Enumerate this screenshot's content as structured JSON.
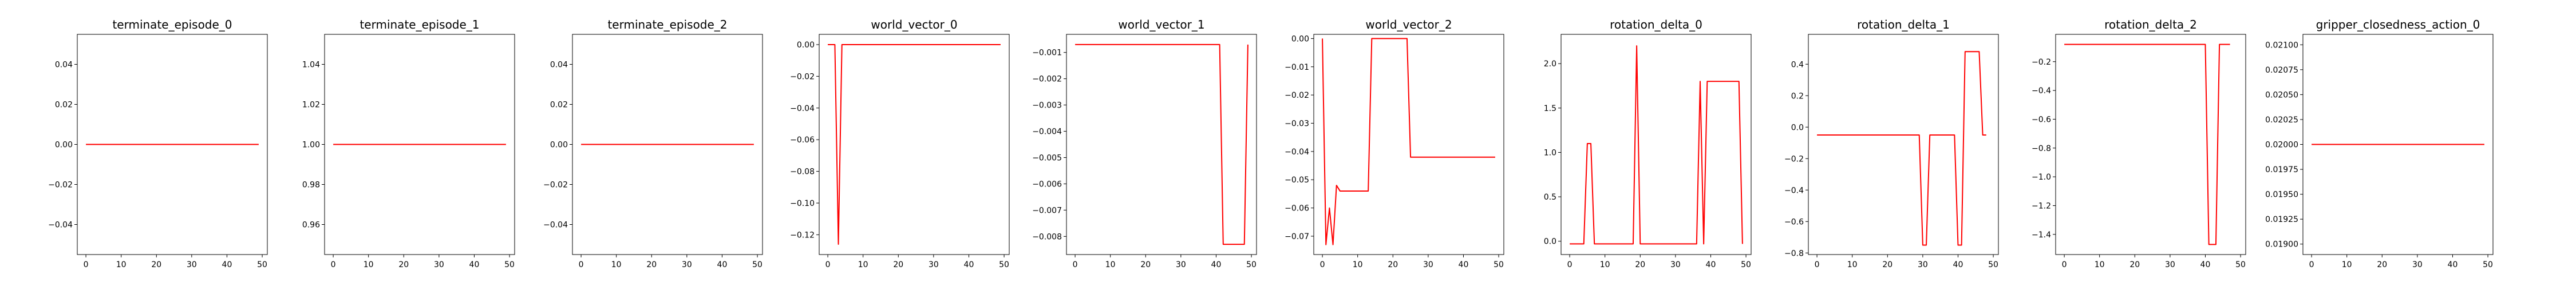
{
  "chart_data": [
    {
      "type": "line",
      "title": "terminate_episode_0",
      "ylim": [
        -0.055,
        0.055
      ],
      "xlim": [
        -2.45,
        51.45
      ],
      "xticks": [
        0,
        10,
        20,
        30,
        40,
        50
      ],
      "yticks": [
        -0.04,
        -0.02,
        0.0,
        0.02,
        0.04
      ],
      "ytick_labels": [
        "−0.04",
        "−0.02",
        "0.00",
        "0.02",
        "0.04"
      ],
      "grid": false,
      "color": "#ff0000",
      "series": [
        {
          "x": [
            0,
            49
          ],
          "y": [
            0,
            0
          ]
        }
      ]
    },
    {
      "type": "line",
      "title": "terminate_episode_1",
      "ylim": [
        0.945,
        1.055
      ],
      "xlim": [
        -2.45,
        51.45
      ],
      "xticks": [
        0,
        10,
        20,
        30,
        40,
        50
      ],
      "yticks": [
        0.96,
        0.98,
        1.0,
        1.02,
        1.04
      ],
      "ytick_labels": [
        "0.96",
        "0.98",
        "1.00",
        "1.02",
        "1.04"
      ],
      "grid": false,
      "color": "#ff0000",
      "series": [
        {
          "x": [
            0,
            49
          ],
          "y": [
            1,
            1
          ]
        }
      ]
    },
    {
      "type": "line",
      "title": "terminate_episode_2",
      "ylim": [
        -0.055,
        0.055
      ],
      "xlim": [
        -2.45,
        51.45
      ],
      "xticks": [
        0,
        10,
        20,
        30,
        40,
        50
      ],
      "yticks": [
        -0.04,
        -0.02,
        0.0,
        0.02,
        0.04
      ],
      "ytick_labels": [
        "−0.04",
        "−0.02",
        "0.00",
        "0.02",
        "0.04"
      ],
      "grid": false,
      "color": "#ff0000",
      "series": [
        {
          "x": [
            0,
            49
          ],
          "y": [
            0,
            0
          ]
        }
      ]
    },
    {
      "type": "line",
      "title": "world_vector_0",
      "ylim": [
        -0.1325,
        0.0065
      ],
      "xlim": [
        -2.45,
        51.45
      ],
      "xticks": [
        0,
        10,
        20,
        30,
        40,
        50
      ],
      "yticks": [
        -0.12,
        -0.1,
        -0.08,
        -0.06,
        -0.04,
        -0.02,
        0.0
      ],
      "ytick_labels": [
        "−0.12",
        "−0.10",
        "−0.08",
        "−0.06",
        "−0.04",
        "−0.02",
        "0.00"
      ],
      "grid": false,
      "color": "#ff0000",
      "series": [
        {
          "x": [
            0,
            1,
            2,
            3,
            4,
            49
          ],
          "y": [
            0,
            0,
            0,
            -0.126,
            0,
            0
          ]
        }
      ]
    },
    {
      "type": "line",
      "title": "world_vector_1",
      "ylim": [
        -0.00869,
        -0.00031
      ],
      "xlim": [
        -2.45,
        51.45
      ],
      "xticks": [
        0,
        10,
        20,
        30,
        40,
        50
      ],
      "yticks": [
        -0.001,
        -0.002,
        -0.003,
        -0.004,
        -0.005,
        -0.006,
        -0.007,
        -0.008
      ],
      "ytick_labels": [
        "−0.001",
        "−0.002",
        "−0.003",
        "−0.004",
        "−0.005",
        "−0.006",
        "−0.007",
        "−0.008"
      ],
      "grid": false,
      "color": "#ff0000",
      "series": [
        {
          "x": [
            0,
            41,
            42,
            47,
            48,
            49
          ],
          "y": [
            -0.0007,
            -0.0007,
            -0.0083,
            -0.0083,
            -0.0083,
            -0.0007
          ]
        }
      ]
    },
    {
      "type": "line",
      "title": "world_vector_2",
      "ylim": [
        -0.0765,
        0.0015
      ],
      "xlim": [
        -2.45,
        51.45
      ],
      "xticks": [
        0,
        10,
        20,
        30,
        40,
        50
      ],
      "yticks": [
        0.0,
        -0.01,
        -0.02,
        -0.03,
        -0.04,
        -0.05,
        -0.06,
        -0.07
      ],
      "ytick_labels": [
        "0.00",
        "−0.01",
        "−0.02",
        "−0.03",
        "−0.04",
        "−0.05",
        "−0.06",
        "−0.07"
      ],
      "grid": false,
      "color": "#ff0000",
      "series": [
        {
          "x": [
            0,
            1,
            2,
            3,
            4,
            5,
            6,
            13,
            14,
            24,
            25,
            49
          ],
          "y": [
            0,
            -0.073,
            -0.06,
            -0.073,
            -0.052,
            -0.054,
            -0.054,
            -0.054,
            0,
            0,
            -0.042,
            -0.042
          ]
        }
      ]
    },
    {
      "type": "line",
      "title": "rotation_delta_0",
      "ylim": [
        -0.15,
        2.33
      ],
      "xlim": [
        -2.45,
        51.45
      ],
      "xticks": [
        0,
        10,
        20,
        30,
        40,
        50
      ],
      "yticks": [
        0.0,
        0.5,
        1.0,
        1.5,
        2.0
      ],
      "ytick_labels": [
        "0.0",
        "0.5",
        "1.0",
        "1.5",
        "2.0"
      ],
      "grid": false,
      "color": "#ff0000",
      "series": [
        {
          "x": [
            0,
            4,
            5,
            6,
            7,
            18,
            19,
            20,
            36,
            37,
            38,
            39,
            48,
            49
          ],
          "y": [
            -0.03,
            -0.03,
            1.1,
            1.1,
            -0.03,
            -0.03,
            2.2,
            -0.03,
            -0.03,
            1.8,
            -0.03,
            1.8,
            1.8,
            -0.03
          ]
        }
      ]
    },
    {
      "type": "line",
      "title": "rotation_delta_1",
      "ylim": [
        -0.81,
        0.59
      ],
      "xlim": [
        -2.45,
        51.45
      ],
      "xticks": [
        0,
        10,
        20,
        30,
        40,
        50
      ],
      "yticks": [
        -0.8,
        -0.6,
        -0.4,
        -0.2,
        0.0,
        0.2,
        0.4
      ],
      "ytick_labels": [
        "−0.8",
        "−0.6",
        "−0.4",
        "−0.2",
        "0.0",
        "0.2",
        "0.4"
      ],
      "grid": false,
      "color": "#ff0000",
      "series": [
        {
          "x": [
            0,
            29,
            30,
            31,
            32,
            39,
            40,
            41,
            42,
            46,
            47,
            48
          ],
          "y": [
            -0.05,
            -0.05,
            -0.75,
            -0.75,
            -0.05,
            -0.05,
            -0.75,
            -0.75,
            0.48,
            0.48,
            -0.05,
            -0.05
          ]
        }
      ]
    },
    {
      "type": "line",
      "title": "rotation_delta_2",
      "ylim": [
        -1.54,
        -0.01
      ],
      "xlim": [
        -2.45,
        51.45
      ],
      "xticks": [
        0,
        10,
        20,
        30,
        40,
        50
      ],
      "yticks": [
        -0.2,
        -0.4,
        -0.6,
        -0.8,
        -1.0,
        -1.2,
        -1.4
      ],
      "ytick_labels": [
        "−0.2",
        "−0.4",
        "−0.6",
        "−0.8",
        "−1.0",
        "−1.2",
        "−1.4"
      ],
      "grid": false,
      "color": "#ff0000",
      "series": [
        {
          "x": [
            0,
            40,
            41,
            43,
            44,
            46,
            47
          ],
          "y": [
            -0.08,
            -0.08,
            -1.47,
            -1.47,
            -0.08,
            -0.08,
            -0.08
          ]
        }
      ]
    },
    {
      "type": "line",
      "title": "gripper_closedness_action_0",
      "ylim": [
        0.018895,
        0.021105
      ],
      "xlim": [
        -2.45,
        51.45
      ],
      "xticks": [
        0,
        10,
        20,
        30,
        40,
        50
      ],
      "yticks": [
        0.019,
        0.01925,
        0.0195,
        0.01975,
        0.02,
        0.02025,
        0.0205,
        0.02075,
        0.021
      ],
      "ytick_labels": [
        "0.01900",
        "0.01925",
        "0.01950",
        "0.01975",
        "0.02000",
        "0.02025",
        "0.02050",
        "0.02075",
        "0.02100"
      ],
      "grid": false,
      "color": "#ff0000",
      "series": [
        {
          "x": [
            0,
            49
          ],
          "y": [
            0.02,
            0.02
          ]
        }
      ]
    }
  ]
}
